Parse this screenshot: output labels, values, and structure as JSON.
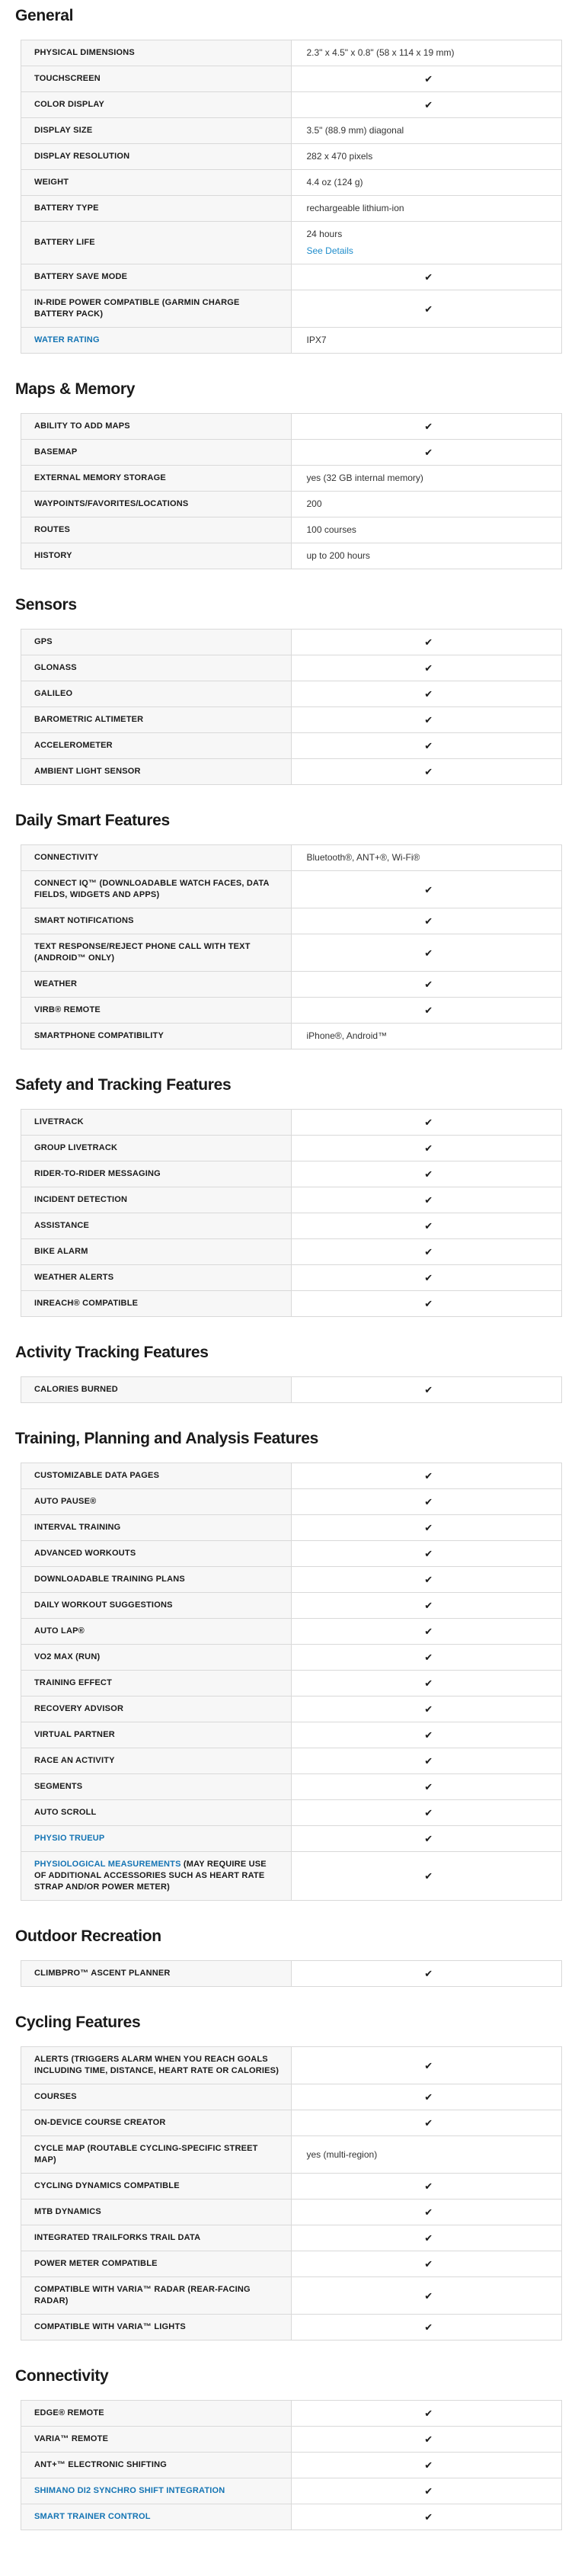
{
  "icons": {
    "check": "✔"
  },
  "colors": {
    "label_link": "#1474b4",
    "value_link": "#1e8ccb",
    "label_bg": "#f7f7f7",
    "border": "#d9d9d9"
  },
  "sections": [
    {
      "title": "General",
      "rows": [
        {
          "label": "PHYSICAL DIMENSIONS",
          "value": "2.3\" x 4.5\" x 0.8\" (58 x 114 x 19 mm)"
        },
        {
          "label": "TOUCHSCREEN",
          "check": true
        },
        {
          "label": "COLOR DISPLAY",
          "check": true
        },
        {
          "label": "DISPLAY SIZE",
          "value": "3.5\" (88.9 mm) diagonal"
        },
        {
          "label": "DISPLAY RESOLUTION",
          "value": "282 x 470 pixels"
        },
        {
          "label": "WEIGHT",
          "value": "4.4 oz (124 g)"
        },
        {
          "label": "BATTERY TYPE",
          "value": "rechargeable lithium-ion"
        },
        {
          "label": "BATTERY LIFE",
          "value": "24 hours",
          "value_link": "See Details"
        },
        {
          "label": "BATTERY SAVE MODE",
          "check": true
        },
        {
          "label": "IN-RIDE POWER COMPATIBLE (GARMIN CHARGE BATTERY PACK)",
          "check": true
        },
        {
          "label": "WATER RATING",
          "label_is_link": true,
          "value": "IPX7"
        }
      ]
    },
    {
      "title": "Maps & Memory",
      "rows": [
        {
          "label": "ABILITY TO ADD MAPS",
          "check": true
        },
        {
          "label": "BASEMAP",
          "check": true
        },
        {
          "label": "EXTERNAL MEMORY STORAGE",
          "value": "yes (32 GB internal memory)"
        },
        {
          "label": "WAYPOINTS/FAVORITES/LOCATIONS",
          "value": "200"
        },
        {
          "label": "ROUTES",
          "value": "100 courses"
        },
        {
          "label": "HISTORY",
          "value": "up to 200 hours"
        }
      ]
    },
    {
      "title": "Sensors",
      "rows": [
        {
          "label": "GPS",
          "check": true
        },
        {
          "label": "GLONASS",
          "check": true
        },
        {
          "label": "GALILEO",
          "check": true
        },
        {
          "label": "BAROMETRIC ALTIMETER",
          "check": true
        },
        {
          "label": "ACCELEROMETER",
          "check": true
        },
        {
          "label": "AMBIENT LIGHT SENSOR",
          "check": true
        }
      ]
    },
    {
      "title": "Daily Smart Features",
      "rows": [
        {
          "label": "CONNECTIVITY",
          "value": "Bluetooth®, ANT+®, Wi-Fi®"
        },
        {
          "label": "CONNECT IQ™ (DOWNLOADABLE WATCH FACES, DATA FIELDS, WIDGETS AND APPS)",
          "check": true
        },
        {
          "label": "SMART NOTIFICATIONS",
          "check": true
        },
        {
          "label": "TEXT RESPONSE/REJECT PHONE CALL WITH TEXT (ANDROID™ ONLY)",
          "check": true
        },
        {
          "label": "WEATHER",
          "check": true
        },
        {
          "label": "VIRB® REMOTE",
          "check": true
        },
        {
          "label": "SMARTPHONE COMPATIBILITY",
          "value": "iPhone®, Android™"
        }
      ]
    },
    {
      "title": "Safety and Tracking Features",
      "rows": [
        {
          "label": "LIVETRACK",
          "check": true
        },
        {
          "label": "GROUP LIVETRACK",
          "check": true
        },
        {
          "label": "RIDER-TO-RIDER MESSAGING",
          "check": true
        },
        {
          "label": "INCIDENT DETECTION",
          "check": true
        },
        {
          "label": "ASSISTANCE",
          "check": true
        },
        {
          "label": "BIKE ALARM",
          "check": true
        },
        {
          "label": "WEATHER ALERTS",
          "check": true
        },
        {
          "label": "INREACH® COMPATIBLE",
          "check": true
        }
      ]
    },
    {
      "title": "Activity Tracking Features",
      "rows": [
        {
          "label": "CALORIES BURNED",
          "check": true
        }
      ]
    },
    {
      "title": "Training, Planning and Analysis Features",
      "rows": [
        {
          "label": "CUSTOMIZABLE DATA PAGES",
          "check": true
        },
        {
          "label": "AUTO PAUSE®",
          "check": true
        },
        {
          "label": "INTERVAL TRAINING",
          "check": true
        },
        {
          "label": "ADVANCED WORKOUTS",
          "check": true
        },
        {
          "label": "DOWNLOADABLE TRAINING PLANS",
          "check": true
        },
        {
          "label": "DAILY WORKOUT SUGGESTIONS",
          "check": true
        },
        {
          "label": "AUTO LAP®",
          "check": true
        },
        {
          "label": "VO2 MAX (RUN)",
          "check": true
        },
        {
          "label": "TRAINING EFFECT",
          "check": true
        },
        {
          "label": "RECOVERY ADVISOR",
          "check": true
        },
        {
          "label": "VIRTUAL PARTNER",
          "check": true
        },
        {
          "label": "RACE AN ACTIVITY",
          "check": true
        },
        {
          "label": "SEGMENTS",
          "check": true
        },
        {
          "label": "AUTO SCROLL",
          "check": true
        },
        {
          "label": "PHYSIO TRUEUP",
          "label_is_link": true,
          "check": true
        },
        {
          "label_link_text": "PHYSIOLOGICAL MEASUREMENTS",
          "label_rest": " (MAY REQUIRE USE OF ADDITIONAL ACCESSORIES SUCH AS HEART RATE STRAP AND/OR POWER METER)",
          "check": true
        }
      ]
    },
    {
      "title": "Outdoor Recreation",
      "rows": [
        {
          "label": "CLIMBPRO™ ASCENT PLANNER",
          "check": true
        }
      ]
    },
    {
      "title": "Cycling Features",
      "rows": [
        {
          "label": "ALERTS (TRIGGERS ALARM WHEN YOU REACH GOALS INCLUDING TIME, DISTANCE, HEART RATE OR CALORIES)",
          "check": true
        },
        {
          "label": "COURSES",
          "check": true
        },
        {
          "label": "ON-DEVICE COURSE CREATOR",
          "check": true
        },
        {
          "label": "CYCLE MAP (ROUTABLE CYCLING-SPECIFIC STREET MAP)",
          "value": "yes (multi-region)"
        },
        {
          "label": "CYCLING DYNAMICS COMPATIBLE",
          "check": true
        },
        {
          "label": "MTB DYNAMICS",
          "check": true
        },
        {
          "label": "INTEGRATED TRAILFORKS TRAIL DATA",
          "check": true
        },
        {
          "label": "POWER METER COMPATIBLE",
          "check": true
        },
        {
          "label": "COMPATIBLE WITH VARIA™ RADAR (REAR-FACING RADAR)",
          "check": true
        },
        {
          "label": "COMPATIBLE WITH VARIA™ LIGHTS",
          "check": true
        }
      ]
    },
    {
      "title": "Connectivity",
      "rows": [
        {
          "label": "EDGE® REMOTE",
          "check": true
        },
        {
          "label": "VARIA™ REMOTE",
          "check": true
        },
        {
          "label": "ANT+™ ELECTRONIC SHIFTING",
          "check": true
        },
        {
          "label": "SHIMANO DI2 SYNCHRO SHIFT INTEGRATION",
          "label_is_link": true,
          "check": true
        },
        {
          "label": "SMART TRAINER CONTROL",
          "label_is_link": true,
          "check": true
        }
      ]
    }
  ]
}
